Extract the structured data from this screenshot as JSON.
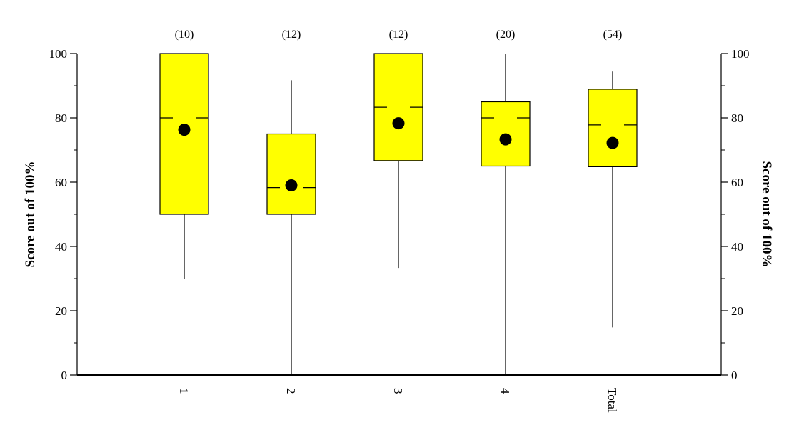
{
  "chart_data": {
    "type": "box",
    "ylabel": "Score out of 100%",
    "ylabel_right": "Score out of 100%",
    "ylim": [
      0,
      100
    ],
    "yticks": [
      0,
      20,
      40,
      60,
      80,
      100
    ],
    "categories": [
      "1",
      "2",
      "3",
      "4",
      "Total"
    ],
    "counts": [
      "(10)",
      "(12)",
      "(12)",
      "(20)",
      "(54)"
    ],
    "boxes": [
      {
        "category": "1",
        "min": 30,
        "q1": 50,
        "median": 80,
        "q3": 100,
        "max": 100,
        "mean": 76.3
      },
      {
        "category": "2",
        "min": 0,
        "q1": 50,
        "median": 58.3,
        "q3": 75,
        "max": 91.7,
        "mean": 59
      },
      {
        "category": "3",
        "min": 33.3,
        "q1": 66.7,
        "median": 83.3,
        "q3": 100,
        "max": 100,
        "mean": 78.3
      },
      {
        "category": "4",
        "min": 0,
        "q1": 65,
        "median": 80,
        "q3": 85,
        "max": 100,
        "mean": 73.3
      },
      {
        "category": "Total",
        "min": 14.8,
        "q1": 64.8,
        "median": 77.8,
        "q3": 88.9,
        "max": 94.4,
        "mean": 72.2
      }
    ],
    "box_color": "#ffff00",
    "mean_marker": "filled-circle",
    "grid": false
  }
}
